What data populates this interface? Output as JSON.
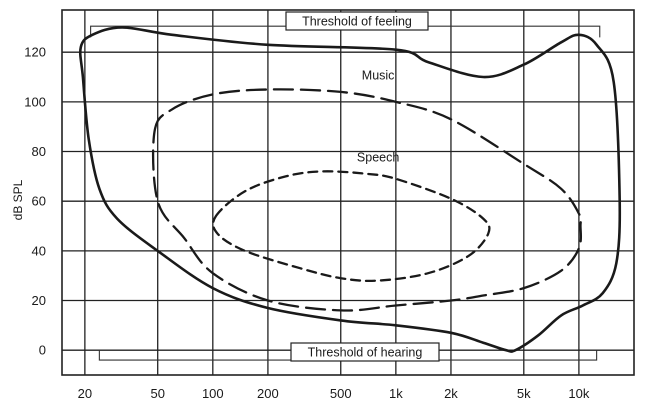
{
  "chart_data": {
    "type": "line",
    "title": "",
    "xlabel": "",
    "ylabel": "dB SPL",
    "x_scale": "log",
    "x_ticks": [
      20,
      50,
      100,
      200,
      500,
      1000,
      2000,
      5000,
      10000
    ],
    "x_tick_labels": [
      "20",
      "50",
      "100",
      "200",
      "500",
      "1k",
      "2k",
      "5k",
      "10k"
    ],
    "y_ticks": [
      0,
      20,
      40,
      60,
      80,
      100,
      120
    ],
    "y_tick_labels": [
      "0",
      "20",
      "40",
      "60",
      "80",
      "100",
      "120"
    ],
    "xlim": [
      15,
      20000
    ],
    "ylim": [
      -10,
      137
    ],
    "grid": true,
    "annotations": {
      "threshold_of_feeling": "Threshold of feeling",
      "threshold_of_hearing": "Threshold of hearing"
    },
    "series": [
      {
        "name": "",
        "style": "solid",
        "color": "#1a1a1a",
        "closed": true,
        "points": [
          [
            19,
            122
          ],
          [
            22,
            127
          ],
          [
            32,
            130
          ],
          [
            60,
            127
          ],
          [
            200,
            123
          ],
          [
            1000,
            121
          ],
          [
            1500,
            116
          ],
          [
            3000,
            110
          ],
          [
            5000,
            115
          ],
          [
            8000,
            124
          ],
          [
            10000,
            127
          ],
          [
            12500,
            123
          ],
          [
            15500,
            108
          ],
          [
            16700,
            60
          ],
          [
            16000,
            35
          ],
          [
            13500,
            23
          ],
          [
            10500,
            18
          ],
          [
            8000,
            14
          ],
          [
            6000,
            6
          ],
          [
            4500,
            0
          ],
          [
            4000,
            0
          ],
          [
            3000,
            3
          ],
          [
            2000,
            7
          ],
          [
            1000,
            10
          ],
          [
            500,
            12
          ],
          [
            200,
            17
          ],
          [
            100,
            25
          ],
          [
            50,
            40
          ],
          [
            30,
            53
          ],
          [
            24,
            65
          ],
          [
            21,
            85
          ],
          [
            19.5,
            110
          ]
        ]
      },
      {
        "name": "Music",
        "style": "dashed",
        "color": "#1a1a1a",
        "closed": true,
        "points": [
          [
            48,
            88
          ],
          [
            60,
            97
          ],
          [
            100,
            103
          ],
          [
            200,
            105
          ],
          [
            500,
            104
          ],
          [
            1000,
            100
          ],
          [
            2000,
            93
          ],
          [
            5000,
            75
          ],
          [
            8000,
            65
          ],
          [
            10000,
            55
          ],
          [
            10200,
            50
          ],
          [
            10000,
            41
          ],
          [
            8000,
            32
          ],
          [
            5000,
            25
          ],
          [
            3000,
            22
          ],
          [
            2000,
            20
          ],
          [
            1000,
            18
          ],
          [
            500,
            16
          ],
          [
            200,
            20
          ],
          [
            100,
            31
          ],
          [
            70,
            45
          ],
          [
            50,
            60
          ]
        ]
      },
      {
        "name": "Speech",
        "style": "dashed-fine",
        "color": "#1a1a1a",
        "closed": true,
        "points": [
          [
            104,
            54
          ],
          [
            150,
            64
          ],
          [
            250,
            70
          ],
          [
            400,
            72
          ],
          [
            700,
            71
          ],
          [
            1000,
            69
          ],
          [
            2000,
            61
          ],
          [
            3000,
            53
          ],
          [
            3200,
            47
          ],
          [
            2500,
            38
          ],
          [
            1500,
            31
          ],
          [
            800,
            28
          ],
          [
            500,
            29
          ],
          [
            300,
            33
          ],
          [
            150,
            40
          ],
          [
            106,
            47
          ]
        ]
      }
    ],
    "region_labels": [
      {
        "series": "Music",
        "text": "Music",
        "x": 800,
        "y": 109
      },
      {
        "series": "Speech",
        "text": "Speech",
        "x": 800,
        "y": 76
      }
    ]
  }
}
